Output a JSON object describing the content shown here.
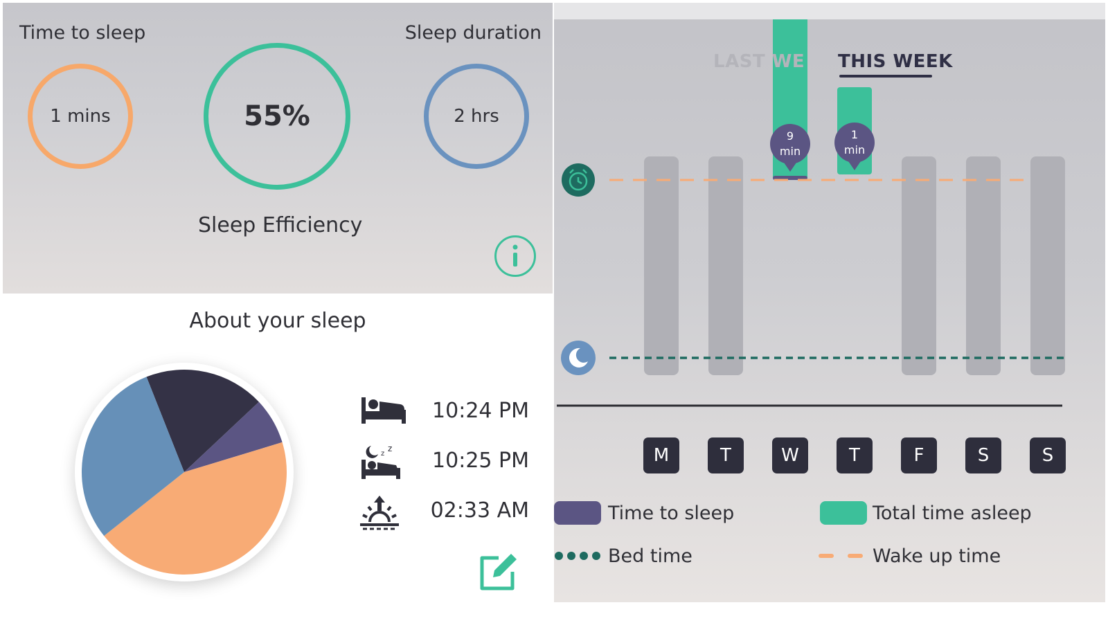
{
  "summary": {
    "time_to_sleep": {
      "label": "Time to sleep",
      "value": "1 mins"
    },
    "efficiency": {
      "value": "55%",
      "label": "Sleep Efficiency"
    },
    "sleep_duration": {
      "label": "Sleep duration",
      "value": "2 hrs"
    },
    "info_icon": "info-icon"
  },
  "about": {
    "title": "About your sleep",
    "pie": [
      {
        "name": "slate",
        "fraction": 0.19,
        "color": "#343246"
      },
      {
        "name": "purple",
        "fraction": 0.073,
        "color": "#5b5583"
      },
      {
        "name": "orange",
        "fraction": 0.44,
        "color": "#f8ab75"
      },
      {
        "name": "blue",
        "fraction": 0.297,
        "color": "#6690b8"
      }
    ],
    "times": [
      {
        "icon": "bed-icon",
        "value": "10:24 PM"
      },
      {
        "icon": "sleeping-icon",
        "value": "10:25 PM"
      },
      {
        "icon": "sunrise-icon",
        "value": "02:33 AM"
      }
    ],
    "edit_icon": "edit-icon"
  },
  "week": {
    "tabs": [
      "LAST WE",
      "THIS WEEK"
    ],
    "active_tab": "THIS WEEK",
    "days": [
      "M",
      "T",
      "W",
      "T",
      "F",
      "S",
      "S"
    ],
    "bars": [
      {
        "day": "M",
        "has_data": false
      },
      {
        "day": "T",
        "has_data": false
      },
      {
        "day": "W",
        "has_data": true,
        "time_to_sleep_line1": "9",
        "time_to_sleep_line2": "min"
      },
      {
        "day": "T",
        "has_data": true,
        "time_to_sleep_line1": "1",
        "time_to_sleep_line2": "min"
      },
      {
        "day": "F",
        "has_data": false
      },
      {
        "day": "S",
        "has_data": false
      },
      {
        "day": "S",
        "has_data": false
      }
    ],
    "legend": {
      "time_to_sleep": "Time to sleep",
      "total_time_asleep": "Total time asleep",
      "bed_time": "Bed time",
      "wake_up_time": "Wake up time"
    },
    "colors": {
      "time_to_sleep": "#5b5583",
      "total_time_asleep": "#3cc09a",
      "bed_time": "#1e6b60",
      "wake_up_time": "#f8ab75",
      "empty_bar": "#b0b0b6"
    }
  }
}
